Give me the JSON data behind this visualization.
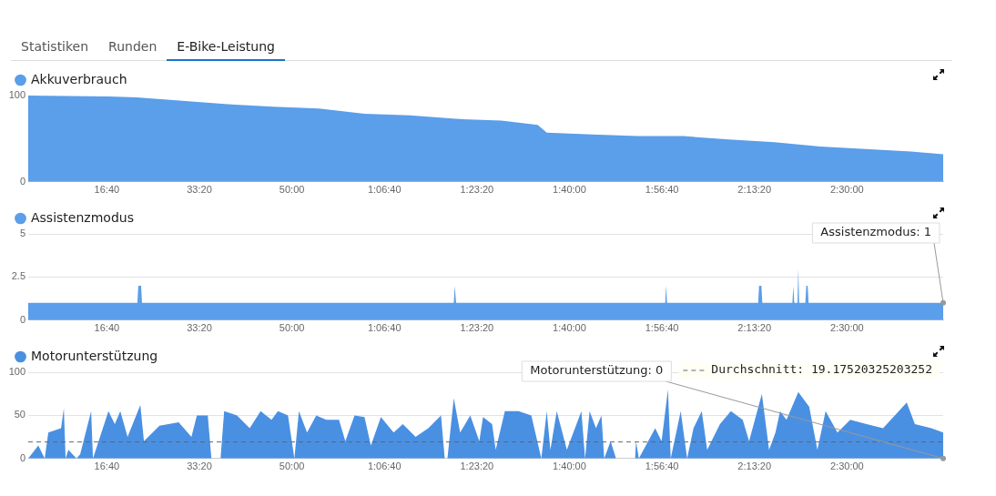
{
  "chart_data": [
    {
      "type": "other",
      "annotations": [
        "Statistiken",
        "Runden",
        "E-Bike-Leistung"
      ]
    },
    {
      "type": "area",
      "legend": "top left",
      "marker": "none",
      "xlim": [
        150,
        10040
      ],
      "ylim": [
        0,
        100
      ],
      "yticks": [
        0,
        100
      ],
      "xticks": [
        {
          "value": 1000,
          "label": "16:40"
        },
        {
          "value": 2000,
          "label": "33:20"
        },
        {
          "value": 3000,
          "label": "50:00"
        },
        {
          "value": 4000,
          "label": "1:06:40"
        },
        {
          "value": 5000,
          "label": "1:23:20"
        },
        {
          "value": 6000,
          "label": "1:40:00"
        },
        {
          "value": 7000,
          "label": "1:56:40"
        },
        {
          "value": 8000,
          "label": "2:13:20"
        },
        {
          "value": 9000,
          "label": "2:30:00"
        }
      ],
      "series": [
        {
          "name": "Akkuverbrauch",
          "color": "#5b9ee9",
          "x": [
            150,
            1027,
            1323,
            1815,
            2308,
            2800,
            3293,
            3785,
            4278,
            4770,
            5263,
            5657,
            5755,
            6248,
            6740,
            7233,
            7725,
            8218,
            8710,
            9203,
            9695,
            10040
          ],
          "values": [
            100,
            99,
            98,
            94,
            90,
            87,
            85,
            79,
            77,
            73,
            71,
            66,
            57,
            55,
            53,
            53,
            49,
            46,
            41,
            38,
            35,
            32
          ]
        }
      ]
    },
    {
      "type": "area",
      "legend": "top left",
      "grid": "y",
      "marker": "none",
      "xlim": [
        150,
        10040
      ],
      "ylim": [
        0,
        5
      ],
      "yticks": [
        0,
        2.5,
        5
      ],
      "xticks": [
        {
          "value": 1000,
          "label": "16:40"
        },
        {
          "value": 2000,
          "label": "33:20"
        },
        {
          "value": 3000,
          "label": "50:00"
        },
        {
          "value": 4000,
          "label": "1:06:40"
        },
        {
          "value": 5000,
          "label": "1:23:20"
        },
        {
          "value": 6000,
          "label": "1:40:00"
        },
        {
          "value": 7000,
          "label": "1:56:40"
        },
        {
          "value": 8000,
          "label": "2:13:20"
        },
        {
          "value": 9000,
          "label": "2:30:00"
        }
      ],
      "annotations": [
        {
          "text": "Assistenzmodus: 1",
          "x": 10040,
          "y": 1
        }
      ],
      "series": [
        {
          "name": "Assistenzmodus",
          "color": "#5b9ee9",
          "x": [
            150,
            1330,
            1340,
            1370,
            1380,
            4750,
            4760,
            4775,
            7035,
            7045,
            7055,
            8040,
            8050,
            8075,
            8085,
            8410,
            8420,
            8430,
            8465,
            8474,
            8483,
            8550,
            8560,
            8575,
            8585,
            10040
          ],
          "values": [
            1,
            1,
            2,
            2,
            1,
            1,
            2,
            1,
            1,
            2,
            1,
            1,
            2,
            2,
            1,
            1,
            2,
            1,
            1,
            3,
            1,
            1,
            2,
            2,
            1,
            1
          ]
        }
      ]
    },
    {
      "type": "area",
      "legend": "top left",
      "grid": "y",
      "marker": "none",
      "xlim": [
        150,
        10040
      ],
      "ylim": [
        0,
        100
      ],
      "yticks": [
        0,
        50,
        100
      ],
      "xticks": [
        {
          "value": 1000,
          "label": "16:40"
        },
        {
          "value": 2000,
          "label": "33:20"
        },
        {
          "value": 3000,
          "label": "50:00"
        },
        {
          "value": 4000,
          "label": "1:06:40"
        },
        {
          "value": 5000,
          "label": "1:23:20"
        },
        {
          "value": 6000,
          "label": "1:40:00"
        },
        {
          "value": 7000,
          "label": "1:56:40"
        },
        {
          "value": 8000,
          "label": "2:13:20"
        },
        {
          "value": 9000,
          "label": "2:30:00"
        }
      ],
      "ref_lines": [
        {
          "axis": "y",
          "value": 19.17520325203252,
          "label": "Durchschnitt: 19.17520325203252",
          "line_style": "dashed",
          "color": "#666666"
        }
      ],
      "annotations": [
        {
          "text": "Motorunterstützung: 0",
          "x": 10040,
          "y": 0
        }
      ],
      "series": [
        {
          "name": "Motorunterstützung",
          "color": "#4a90e2",
          "x": [
            150,
            259,
            328,
            367,
            505,
            535,
            554,
            584,
            672,
            712,
            830,
            850,
            1017,
            1086,
            1145,
            1224,
            1362,
            1401,
            1569,
            1776,
            1914,
            1973,
            2091,
            2130,
            2229,
            2268,
            2406,
            2544,
            2662,
            2780,
            2849,
            2958,
            3027,
            3076,
            3164,
            3263,
            3371,
            3509,
            3578,
            3677,
            3785,
            3854,
            3962,
            4100,
            4199,
            4337,
            4475,
            4612,
            4652,
            4681,
            4750,
            4819,
            4928,
            5026,
            5066,
            5164,
            5203,
            5302,
            5450,
            5588,
            5696,
            5755,
            5794,
            5863,
            5972,
            6129,
            6169,
            6218,
            6287,
            6346,
            6376,
            6445,
            6504,
            6710,
            6720,
            6750,
            6927,
            6996,
            7065,
            7095,
            7203,
            7272,
            7341,
            7430,
            7489,
            7627,
            7745,
            7873,
            7942,
            8080,
            8158,
            8227,
            8277,
            8346,
            8474,
            8592,
            8680,
            8769,
            8897,
            9035,
            9212,
            9390,
            9646,
            9734,
            9912,
            10040
          ],
          "values": [
            0,
            15,
            0,
            30,
            35,
            58,
            0,
            10,
            0,
            5,
            55,
            0,
            55,
            40,
            55,
            25,
            62,
            20,
            38,
            42,
            25,
            50,
            50,
            0,
            0,
            55,
            50,
            35,
            55,
            45,
            55,
            50,
            0,
            55,
            30,
            50,
            45,
            45,
            20,
            50,
            48,
            15,
            48,
            30,
            40,
            25,
            35,
            50,
            0,
            0,
            70,
            30,
            50,
            20,
            48,
            40,
            10,
            55,
            55,
            50,
            0,
            55,
            10,
            55,
            10,
            55,
            0,
            55,
            35,
            50,
            0,
            20,
            0,
            0,
            20,
            0,
            35,
            20,
            80,
            0,
            55,
            0,
            35,
            55,
            10,
            40,
            55,
            45,
            20,
            75,
            10,
            30,
            55,
            45,
            77,
            60,
            10,
            55,
            30,
            45,
            40,
            35,
            65,
            40,
            35,
            30
          ]
        }
      ]
    }
  ]
}
